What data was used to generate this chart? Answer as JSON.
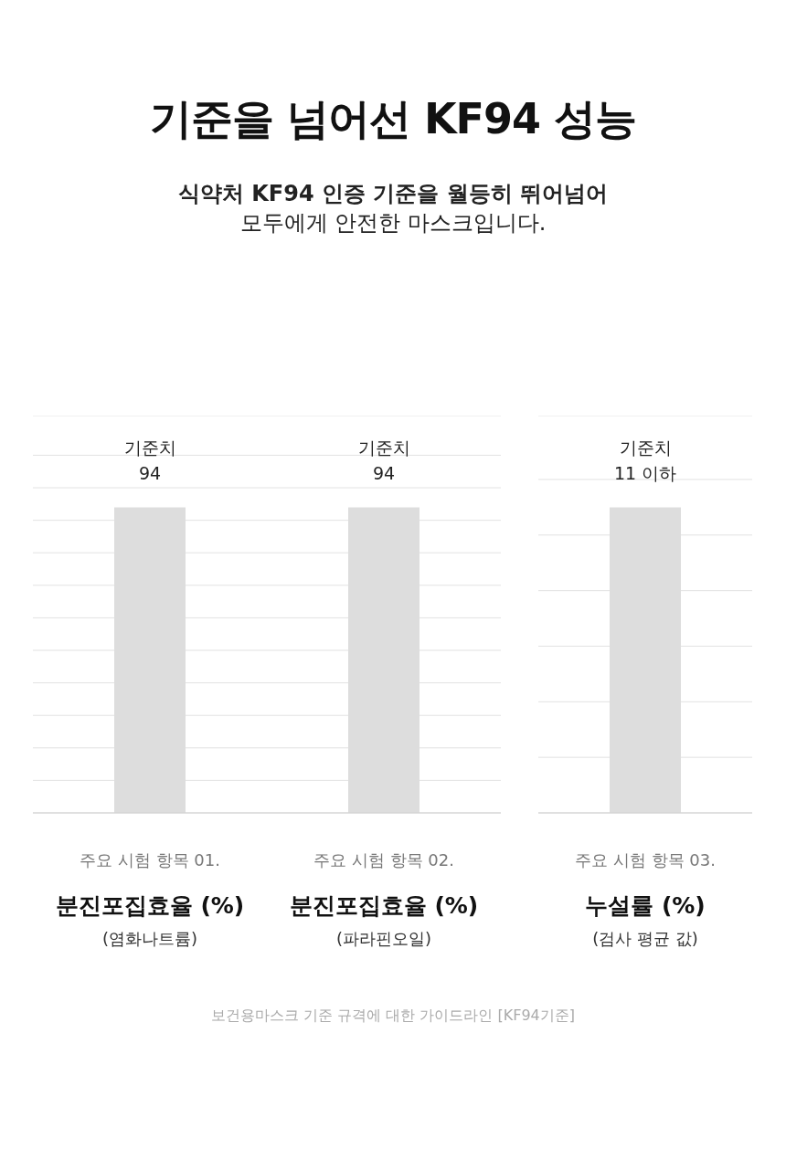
{
  "chart_data": [
    {
      "type": "bar",
      "title": "기준을 넘어선 KF94 성능",
      "subtitle": "식약처 KF94 인증 기준을 월등히 뛰어넘어\n모두에게 안전한 마스크입니다.",
      "annotations": [
        "보건용마스크 기준 규격에 대한 가이드라인 [KF94기준]"
      ],
      "categories": [
        "주요 시험 항목 01.\n분진포집효율 (%)\n(염화나트륨)",
        "주요 시험 항목 02.\n분진포집효율 (%)\n(파라핀오일)"
      ],
      "series": [
        {
          "color": "#dddddd",
          "values": [
            94,
            94
          ],
          "value_labels": [
            "기준치\n94",
            "기준치\n94"
          ]
        }
      ],
      "grid": "y"
    },
    {
      "type": "bar",
      "categories": [
        "주요 시험 항목 03.\n누설률 (%)\n(검사 평균 값)"
      ],
      "series": [
        {
          "color": "#dddddd",
          "values": [
            11
          ],
          "value_labels": [
            "기준치\n11 이하"
          ]
        }
      ],
      "grid": "y"
    }
  ]
}
